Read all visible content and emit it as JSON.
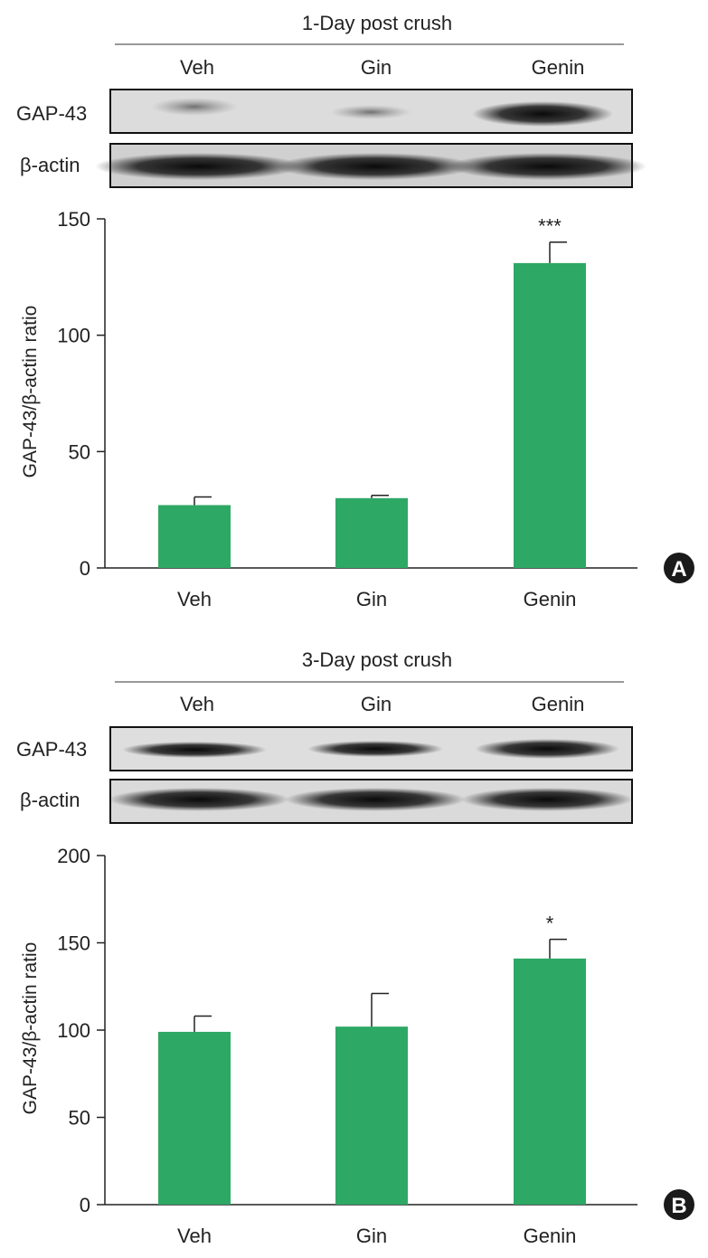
{
  "chart_data": [
    {
      "panel": "A",
      "type": "bar",
      "title": "1-Day post crush",
      "blot_rows": [
        "GAP-43",
        "β-actin"
      ],
      "categories": [
        "Veh",
        "Gin",
        "Genin"
      ],
      "values": [
        27,
        30,
        131
      ],
      "errors": [
        3.5,
        1.2,
        9
      ],
      "significance": [
        "",
        "",
        "***"
      ],
      "ylabel": "GAP-43/β-actin ratio",
      "ylim": [
        0,
        150
      ],
      "yticks": [
        0,
        50,
        100,
        150
      ],
      "bar_color": "#2ea865",
      "grid": false
    },
    {
      "panel": "B",
      "type": "bar",
      "title": "3-Day post crush",
      "blot_rows": [
        "GAP-43",
        "β-actin"
      ],
      "categories": [
        "Veh",
        "Gin",
        "Genin"
      ],
      "values": [
        99,
        102,
        141
      ],
      "errors": [
        9,
        19,
        11
      ],
      "significance": [
        "",
        "",
        "*"
      ],
      "ylabel": "GAP-43/β-actin ratio",
      "ylim": [
        0,
        200
      ],
      "yticks": [
        0,
        50,
        100,
        150,
        200
      ],
      "bar_color": "#2ea865",
      "grid": false
    }
  ]
}
